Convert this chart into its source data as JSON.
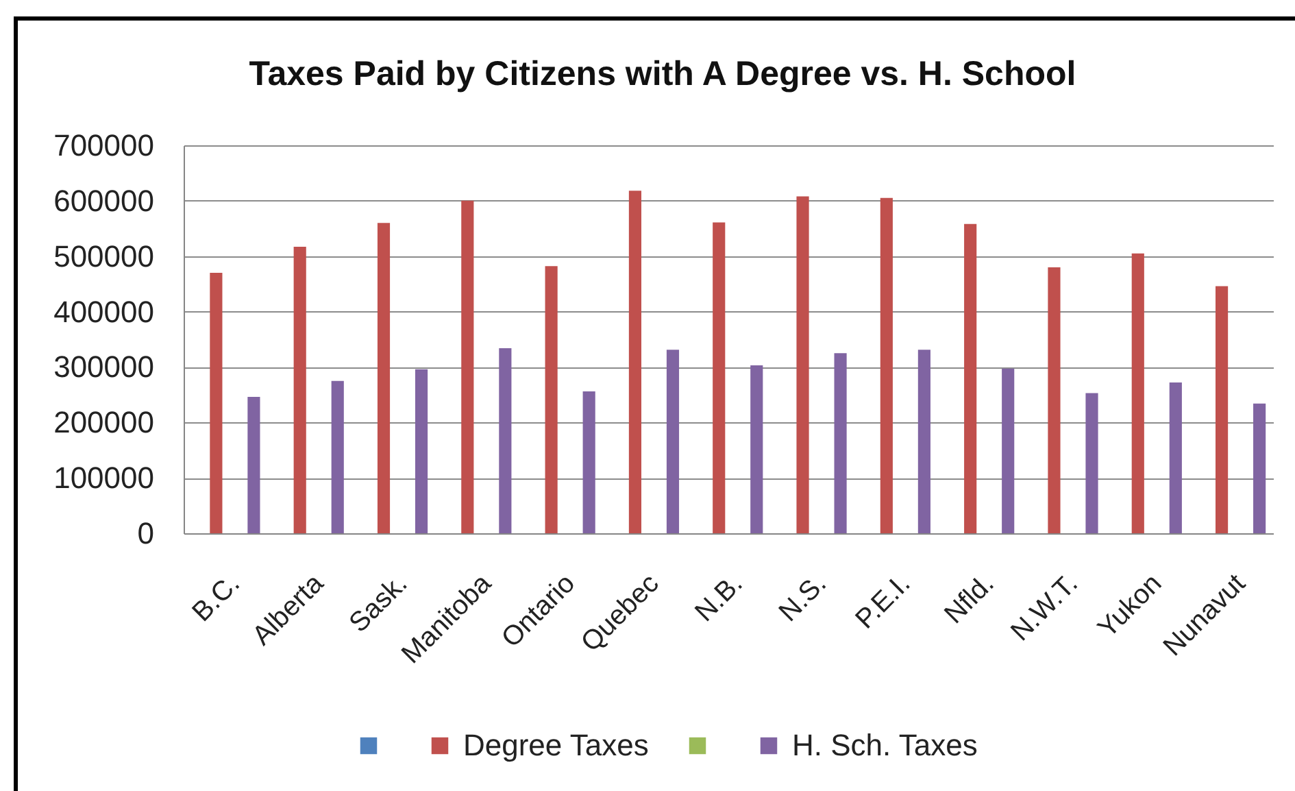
{
  "chart_data": {
    "type": "bar",
    "title": "Taxes Paid by Citizens with A Degree vs. H. School",
    "categories": [
      "B.C.",
      "Alberta",
      "Sask.",
      "Manitoba",
      "Ontario",
      "Quebec",
      "N.B.",
      "N.S.",
      "P.E.I.",
      "Nfld.",
      "N.W.T.",
      "Yukon",
      "Nunavut"
    ],
    "series": [
      {
        "color": "#4f81bd",
        "values": [
          null,
          null,
          null,
          null,
          null,
          null,
          null,
          null,
          null,
          null,
          null,
          null,
          null
        ]
      },
      {
        "name": "Degree Taxes",
        "color": "#c0504d",
        "values": [
          470000,
          517000,
          560000,
          600000,
          482000,
          618000,
          561000,
          608000,
          605000,
          558000,
          480000,
          505000,
          446000
        ]
      },
      {
        "color": "#9bbb59",
        "values": [
          null,
          null,
          null,
          null,
          null,
          null,
          null,
          null,
          null,
          null,
          null,
          null,
          null
        ]
      },
      {
        "name": "H. Sch. Taxes",
        "color": "#8064a2",
        "values": [
          246000,
          275000,
          296000,
          334000,
          256000,
          331000,
          303000,
          325000,
          331000,
          297000,
          253000,
          272000,
          234000
        ]
      }
    ],
    "ylim": [
      0,
      700000
    ],
    "yticks": [
      0,
      100000,
      200000,
      300000,
      400000,
      500000,
      600000,
      700000
    ],
    "grid": "y",
    "legend": "bottom"
  }
}
